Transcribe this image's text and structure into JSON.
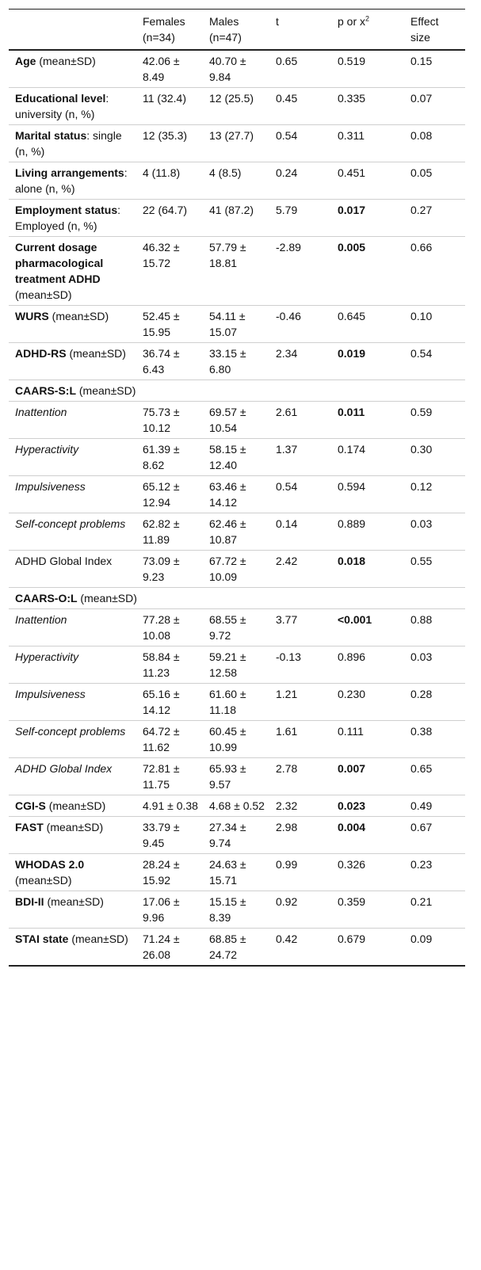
{
  "header": {
    "col1": "",
    "col2": "Females (n=34)",
    "col3": "Males (n=47)",
    "col4": "t",
    "col5_main": "p or x",
    "col5_sup": "2",
    "col6": "Effect size"
  },
  "rows": [
    {
      "kind": "row",
      "label_b": "Age",
      "label_r": " (mean±SD)",
      "f": "42.06 ± 8.49",
      "m": "40.70 ± 9.84",
      "t": "0.65",
      "p": "0.519",
      "p_bold": false,
      "es": "0.15"
    },
    {
      "kind": "row",
      "label_b": "Educational level",
      "label_r": ": university (n, %)",
      "f": "11 (32.4)",
      "m": "12 (25.5)",
      "t": "0.45",
      "p": "0.335",
      "p_bold": false,
      "es": "0.07"
    },
    {
      "kind": "row",
      "label_b": "Marital status",
      "label_r": ": single (n, %)",
      "f": "12 (35.3)",
      "m": "13 (27.7)",
      "t": "0.54",
      "p": "0.311",
      "p_bold": false,
      "es": "0.08"
    },
    {
      "kind": "row",
      "label_b": "Living arrangements",
      "label_r": ": alone (n, %)",
      "f": "4 (11.8)",
      "m": "4 (8.5)",
      "t": "0.24",
      "p": "0.451",
      "p_bold": false,
      "es": "0.05"
    },
    {
      "kind": "row",
      "label_b": "Employment status",
      "label_r": ": Employed (n, %)",
      "f": "22 (64.7)",
      "m": "41 (87.2)",
      "t": "5.79",
      "p": "0.017",
      "p_bold": true,
      "es": "0.27"
    },
    {
      "kind": "row",
      "label_b": "Current dosage pharmacological treatment ADHD",
      "label_r": " (mean±SD)",
      "f": "46.32 ± 15.72",
      "m": "57.79 ± 18.81",
      "t": "-2.89",
      "p": "0.005",
      "p_bold": true,
      "es": "0.66"
    },
    {
      "kind": "row",
      "label_b": "WURS",
      "label_r": " (mean±SD)",
      "f": "52.45 ± 15.95",
      "m": "54.11 ± 15.07",
      "t": "-0.46",
      "p": "0.645",
      "p_bold": false,
      "es": "0.10"
    },
    {
      "kind": "row",
      "label_b": "ADHD-RS",
      "label_r": " (mean±SD)",
      "f": "36.74 ± 6.43",
      "m": "33.15 ± 6.80",
      "t": "2.34",
      "p": "0.019",
      "p_bold": true,
      "es": "0.54"
    },
    {
      "kind": "section",
      "label_b": "CAARS-S:L",
      "label_r": " (mean±SD)"
    },
    {
      "kind": "row",
      "label_i": "Inattention",
      "f": "75.73 ± 10.12",
      "m": "69.57 ± 10.54",
      "t": "2.61",
      "p": "0.011",
      "p_bold": true,
      "es": "0.59"
    },
    {
      "kind": "row",
      "label_i": "Hyperactivity",
      "f": "61.39 ± 8.62",
      "m": "58.15 ± 12.40",
      "t": "1.37",
      "p": "0.174",
      "p_bold": false,
      "es": "0.30"
    },
    {
      "kind": "row",
      "label_i": "Impulsiveness",
      "f": "65.12 ± 12.94",
      "m": "63.46 ± 14.12",
      "t": "0.54",
      "p": "0.594",
      "p_bold": false,
      "es": "0.12"
    },
    {
      "kind": "row",
      "label_i": "Self-concept problems",
      "f": "62.82 ± 11.89",
      "m": "62.46 ± 10.87",
      "t": "0.14",
      "p": "0.889",
      "p_bold": false,
      "es": "0.03"
    },
    {
      "kind": "row",
      "label_n": "ADHD Global Index",
      "f": "73.09 ± 9.23",
      "m": "67.72 ± 10.09",
      "t": "2.42",
      "p": "0.018",
      "p_bold": true,
      "es": "0.55"
    },
    {
      "kind": "section",
      "label_b": "CAARS-O:L",
      "label_r": " (mean±SD)"
    },
    {
      "kind": "row",
      "label_i": "Inattention",
      "f": "77.28 ± 10.08",
      "m": "68.55 ± 9.72",
      "t": "3.77",
      "p": "<0.001",
      "p_bold": true,
      "es": "0.88"
    },
    {
      "kind": "row",
      "label_i": "Hyperactivity",
      "f": "58.84 ± 11.23",
      "m": "59.21 ± 12.58",
      "t": "-0.13",
      "p": "0.896",
      "p_bold": false,
      "es": "0.03"
    },
    {
      "kind": "row",
      "label_i": "Impulsiveness",
      "f": "65.16 ± 14.12",
      "m": "61.60 ± 11.18",
      "t": "1.21",
      "p": "0.230",
      "p_bold": false,
      "es": "0.28"
    },
    {
      "kind": "row",
      "label_i": "Self-concept problems",
      "f": "64.72 ± 11.62",
      "m": "60.45 ± 10.99",
      "t": "1.61",
      "p": "0.111",
      "p_bold": false,
      "es": "0.38"
    },
    {
      "kind": "row",
      "label_i": "ADHD Global Index",
      "f": "72.81 ± 11.75",
      "m": "65.93 ± 9.57",
      "t": "2.78",
      "p": "0.007",
      "p_bold": true,
      "es": "0.65"
    },
    {
      "kind": "row",
      "label_b": "CGI-S",
      "label_r": " (mean±SD)",
      "f": "4.91 ± 0.38",
      "m": "4.68 ± 0.52",
      "t": "2.32",
      "p": "0.023",
      "p_bold": true,
      "es": "0.49"
    },
    {
      "kind": "row",
      "label_b": "FAST",
      "label_r": " (mean±SD)",
      "f": "33.79 ± 9.45",
      "m": "27.34 ± 9.74",
      "t": "2.98",
      "p": "0.004",
      "p_bold": true,
      "es": "0.67"
    },
    {
      "kind": "row",
      "label_b": "WHODAS 2.0",
      "label_r": " (mean±SD)",
      "f": "28.24 ± 15.92",
      "m": "24.63 ± 15.71",
      "t": "0.99",
      "p": "0.326",
      "p_bold": false,
      "es": "0.23"
    },
    {
      "kind": "row",
      "label_b": "BDI-II",
      "label_r": " (mean±SD)",
      "f": "17.06 ± 9.96",
      "m": "15.15 ± 8.39",
      "t": "0.92",
      "p": "0.359",
      "p_bold": false,
      "es": "0.21"
    },
    {
      "kind": "row",
      "label_b": "STAI state",
      "label_r": " (mean±SD)",
      "f": "71.24 ± 26.08",
      "m": "68.85 ± 24.72",
      "t": "0.42",
      "p": "0.679",
      "p_bold": false,
      "es": "0.09"
    }
  ]
}
